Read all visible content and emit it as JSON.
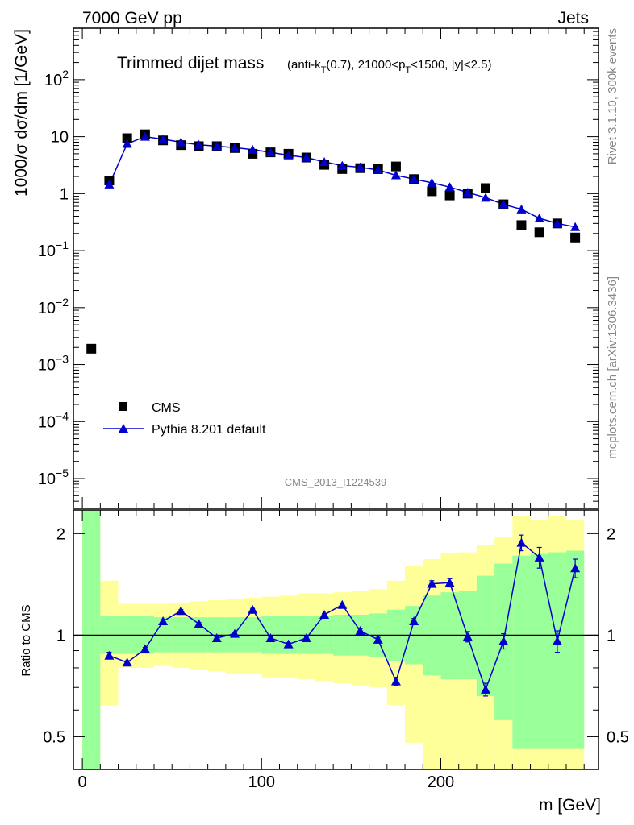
{
  "header": {
    "energy_label": "7000 GeV pp",
    "category_label": "Jets"
  },
  "side": {
    "rivet_label": "Rivet 3.1.10,  300k events",
    "mcplots_label": "mcplots.cern.ch [arXiv:1306.3436]"
  },
  "analysis_label": "CMS_2013_I1224539",
  "colors": {
    "data": "#000000",
    "mc": "#0000cc",
    "band_inner": "#99ff99",
    "band_outer": "#ffff99"
  },
  "chart_data": [
    {
      "type": "scatter",
      "title": "Trimmed dijet mass",
      "title_detail": "(anti-k_T(0.7), 21000<p_T<1500, |y|<2.5)",
      "ylabel": "1000/σ dσ/dm [1/GeV]",
      "ylog": true,
      "ylim": [
        3e-06,
        800
      ],
      "xlim": [
        -5,
        288
      ],
      "legend_position": "bottom-left",
      "series": [
        {
          "name": "CMS",
          "marker": "square",
          "x": [
            5,
            15,
            25,
            35,
            45,
            55,
            65,
            75,
            85,
            95,
            105,
            115,
            125,
            135,
            145,
            155,
            165,
            175,
            185,
            195,
            205,
            215,
            225,
            235,
            245,
            255,
            265,
            275
          ],
          "y": [
            0.0019,
            1.7,
            9.4,
            11.0,
            8.6,
            7.1,
            6.8,
            6.8,
            6.3,
            5.0,
            5.3,
            5.0,
            4.3,
            3.2,
            2.7,
            2.8,
            2.7,
            3.0,
            1.8,
            1.1,
            0.93,
            1.0,
            1.25,
            0.65,
            0.28,
            0.21,
            0.3,
            0.17
          ]
        },
        {
          "name": "Pythia 8.201 default",
          "marker": "triangle",
          "x": [
            15,
            25,
            35,
            45,
            55,
            65,
            75,
            85,
            95,
            105,
            115,
            125,
            135,
            145,
            155,
            165,
            175,
            185,
            195,
            205,
            215,
            225,
            235,
            245,
            255,
            265,
            275
          ],
          "y": [
            1.45,
            7.5,
            10.0,
            9.0,
            8.0,
            7.2,
            6.8,
            6.4,
            5.9,
            5.3,
            4.7,
            4.3,
            3.6,
            3.1,
            2.9,
            2.6,
            2.1,
            1.8,
            1.55,
            1.3,
            1.05,
            0.85,
            0.65,
            0.53,
            0.37,
            0.3,
            0.26
          ]
        }
      ]
    },
    {
      "type": "line",
      "ylabel": "Ratio to CMS",
      "xlabel": "m [GeV]",
      "ylog": true,
      "ylim": [
        0.4,
        2.35
      ],
      "xlim": [
        -5,
        288
      ],
      "x_ticks": [
        0,
        100,
        200
      ],
      "y_ticks": [
        0.5,
        1,
        2
      ],
      "reference_line": 1,
      "bins": [
        [
          0,
          10
        ],
        [
          10,
          20
        ],
        [
          20,
          30
        ],
        [
          30,
          40
        ],
        [
          40,
          50
        ],
        [
          50,
          60
        ],
        [
          60,
          70
        ],
        [
          70,
          80
        ],
        [
          80,
          90
        ],
        [
          90,
          100
        ],
        [
          100,
          110
        ],
        [
          110,
          120
        ],
        [
          120,
          130
        ],
        [
          130,
          140
        ],
        [
          140,
          150
        ],
        [
          150,
          160
        ],
        [
          160,
          170
        ],
        [
          170,
          180
        ],
        [
          180,
          190
        ],
        [
          190,
          200
        ],
        [
          200,
          210
        ],
        [
          210,
          220
        ],
        [
          220,
          230
        ],
        [
          230,
          240
        ],
        [
          240,
          250
        ],
        [
          250,
          260
        ],
        [
          260,
          270
        ],
        [
          270,
          280
        ]
      ],
      "band_inner": {
        "low": [
          0.35,
          0.88,
          0.88,
          0.88,
          0.89,
          0.89,
          0.89,
          0.89,
          0.89,
          0.89,
          0.88,
          0.88,
          0.88,
          0.88,
          0.87,
          0.87,
          0.86,
          0.84,
          0.82,
          0.76,
          0.74,
          0.74,
          0.66,
          0.56,
          0.46,
          0.46,
          0.46,
          0.46
        ],
        "high": [
          2.35,
          1.14,
          1.14,
          1.14,
          1.13,
          1.13,
          1.13,
          1.13,
          1.13,
          1.13,
          1.14,
          1.14,
          1.14,
          1.14,
          1.15,
          1.15,
          1.16,
          1.19,
          1.22,
          1.31,
          1.34,
          1.35,
          1.5,
          1.63,
          1.72,
          1.74,
          1.76,
          1.78
        ]
      },
      "band_outer": {
        "low": [
          0.35,
          0.62,
          0.8,
          0.8,
          0.81,
          0.8,
          0.79,
          0.78,
          0.77,
          0.77,
          0.75,
          0.75,
          0.74,
          0.73,
          0.72,
          0.71,
          0.7,
          0.62,
          0.48,
          0.38,
          0.38,
          0.38,
          0.38,
          0.38,
          0.38,
          0.38,
          0.38,
          0.38
        ],
        "high": [
          2.35,
          1.45,
          1.24,
          1.24,
          1.24,
          1.25,
          1.26,
          1.27,
          1.28,
          1.29,
          1.3,
          1.31,
          1.33,
          1.33,
          1.34,
          1.35,
          1.37,
          1.45,
          1.6,
          1.68,
          1.75,
          1.76,
          1.85,
          1.95,
          2.25,
          2.2,
          2.25,
          2.2
        ]
      },
      "series": [
        {
          "name": "Pythia 8.201 default",
          "x": [
            15,
            25,
            35,
            45,
            55,
            65,
            75,
            85,
            95,
            105,
            115,
            125,
            135,
            145,
            155,
            165,
            175,
            185,
            195,
            205,
            215,
            225,
            235,
            245,
            255,
            265,
            275
          ],
          "y": [
            0.87,
            0.83,
            0.91,
            1.1,
            1.18,
            1.08,
            0.98,
            1.01,
            1.19,
            0.98,
            0.94,
            0.98,
            1.15,
            1.23,
            1.03,
            0.97,
            0.73,
            1.1,
            1.42,
            1.43,
            0.99,
            0.69,
            0.96,
            1.88,
            1.7,
            0.96,
            1.58
          ],
          "err": [
            0.02,
            0.01,
            0.01,
            0.01,
            0.01,
            0.01,
            0.01,
            0.01,
            0.01,
            0.01,
            0.01,
            0.01,
            0.01,
            0.015,
            0.015,
            0.015,
            0.02,
            0.02,
            0.03,
            0.04,
            0.035,
            0.03,
            0.05,
            0.1,
            0.12,
            0.07,
            0.1
          ]
        }
      ]
    }
  ]
}
